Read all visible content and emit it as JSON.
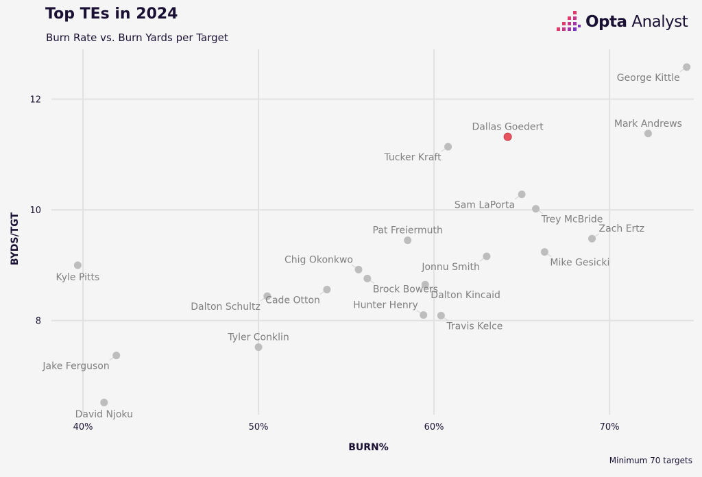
{
  "header": {
    "title": "Top TEs in 2024",
    "subtitle": "Burn Rate vs. Burn Yards per Target"
  },
  "brand": {
    "name_bold": "Opta",
    "name_rest": " Analyst",
    "logo_icon": "opta-pixel-bars-icon"
  },
  "footnote": "Minimum 70 targets",
  "colors": {
    "point": "#bdbdbd",
    "highlight": "#e5545f",
    "highlight_label": "#ee9aa0",
    "grid": "#e1e1e1",
    "background": "#f5f5f5",
    "text": "#1a1033"
  },
  "chart_data": {
    "type": "scatter",
    "xlabel": "BURN%",
    "ylabel": "BYDS/TGT",
    "xlim": [
      38.2,
      74.8
    ],
    "ylim": [
      6.3,
      12.9
    ],
    "x_ticks": [
      40,
      50,
      60,
      70
    ],
    "x_tick_labels": [
      "40%",
      "50%",
      "60%",
      "70%"
    ],
    "y_ticks": [
      8,
      10,
      12
    ],
    "y_tick_labels": [
      "8",
      "10",
      "12"
    ],
    "grid": true,
    "points": [
      {
        "name": "George Kittle",
        "x": 74.4,
        "y": 12.58,
        "label_pos": "below-left"
      },
      {
        "name": "Mark Andrews",
        "x": 72.2,
        "y": 11.38,
        "label_pos": "above"
      },
      {
        "name": "Dallas Goedert",
        "x": 64.2,
        "y": 11.32,
        "label_pos": "above",
        "highlight": true
      },
      {
        "name": "Tucker Kraft",
        "x": 60.8,
        "y": 11.14,
        "label_pos": "below-left"
      },
      {
        "name": "Sam LaPorta",
        "x": 65.0,
        "y": 10.28,
        "label_pos": "below-left"
      },
      {
        "name": "Trey McBride",
        "x": 65.8,
        "y": 10.02,
        "label_pos": "below-right"
      },
      {
        "name": "Zach Ertz",
        "x": 69.0,
        "y": 9.48,
        "label_pos": "above-right"
      },
      {
        "name": "Pat Freiermuth",
        "x": 58.5,
        "y": 9.45,
        "label_pos": "above"
      },
      {
        "name": "Mike Gesicki",
        "x": 66.3,
        "y": 9.24,
        "label_pos": "below-right"
      },
      {
        "name": "Jonnu Smith",
        "x": 63.0,
        "y": 9.16,
        "label_pos": "below-left"
      },
      {
        "name": "Kyle Pitts",
        "x": 39.7,
        "y": 9.0,
        "label_pos": "below"
      },
      {
        "name": "Chig Okonkwo",
        "x": 55.7,
        "y": 8.92,
        "label_pos": "above-left"
      },
      {
        "name": "Brock Bowers",
        "x": 56.2,
        "y": 8.76,
        "label_pos": "below-right"
      },
      {
        "name": "Dalton Kincaid",
        "x": 59.5,
        "y": 8.65,
        "label_pos": "below-right"
      },
      {
        "name": "Cade Otton",
        "x": 53.9,
        "y": 8.56,
        "label_pos": "below-left"
      },
      {
        "name": "Dalton Schultz",
        "x": 50.5,
        "y": 8.44,
        "label_pos": "below-left"
      },
      {
        "name": "Hunter Henry",
        "x": 59.4,
        "y": 8.1,
        "label_pos": "above-left"
      },
      {
        "name": "Travis Kelce",
        "x": 60.4,
        "y": 8.09,
        "label_pos": "below-right"
      },
      {
        "name": "Tyler Conklin",
        "x": 50.0,
        "y": 7.52,
        "label_pos": "above"
      },
      {
        "name": "Jake Ferguson",
        "x": 41.9,
        "y": 7.37,
        "label_pos": "below-left"
      },
      {
        "name": "David Njoku",
        "x": 41.2,
        "y": 6.52,
        "label_pos": "below"
      }
    ]
  }
}
